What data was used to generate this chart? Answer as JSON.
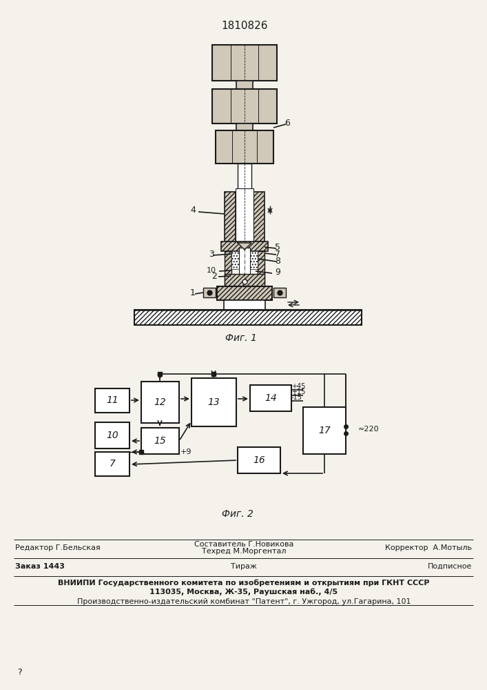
{
  "patent_number": "1810826",
  "fig1_caption": "Фиг. 1",
  "fig2_caption": "Фиг. 2",
  "bg_color": "#f5f2ec",
  "line_color": "#1a1a1a",
  "footer_line1_left": "Редактор Г.Бельская",
  "footer_line1_center1": "Составитель Г.Новикова",
  "footer_line1_center2": "Техред М.Моргентал",
  "footer_line1_right": "Корректор  А.Мотыль",
  "footer_line2_left": "Заказ 1443",
  "footer_line2_center": "Тираж",
  "footer_line2_right": "Подписное",
  "footer_vniiipi": "ВНИИПИ Государственного комитета по изобретениям и открытиям при ГКНТ СССР",
  "footer_address": "113035, Москва, Ж-35, Раушская наб., 4/5",
  "footer_factory": "Производственно-издательский комбинат \"Патент\", г. Ужгород, ул.Гагарина, 101",
  "hatch_fc": "#d0c8b8",
  "white": "#ffffff"
}
